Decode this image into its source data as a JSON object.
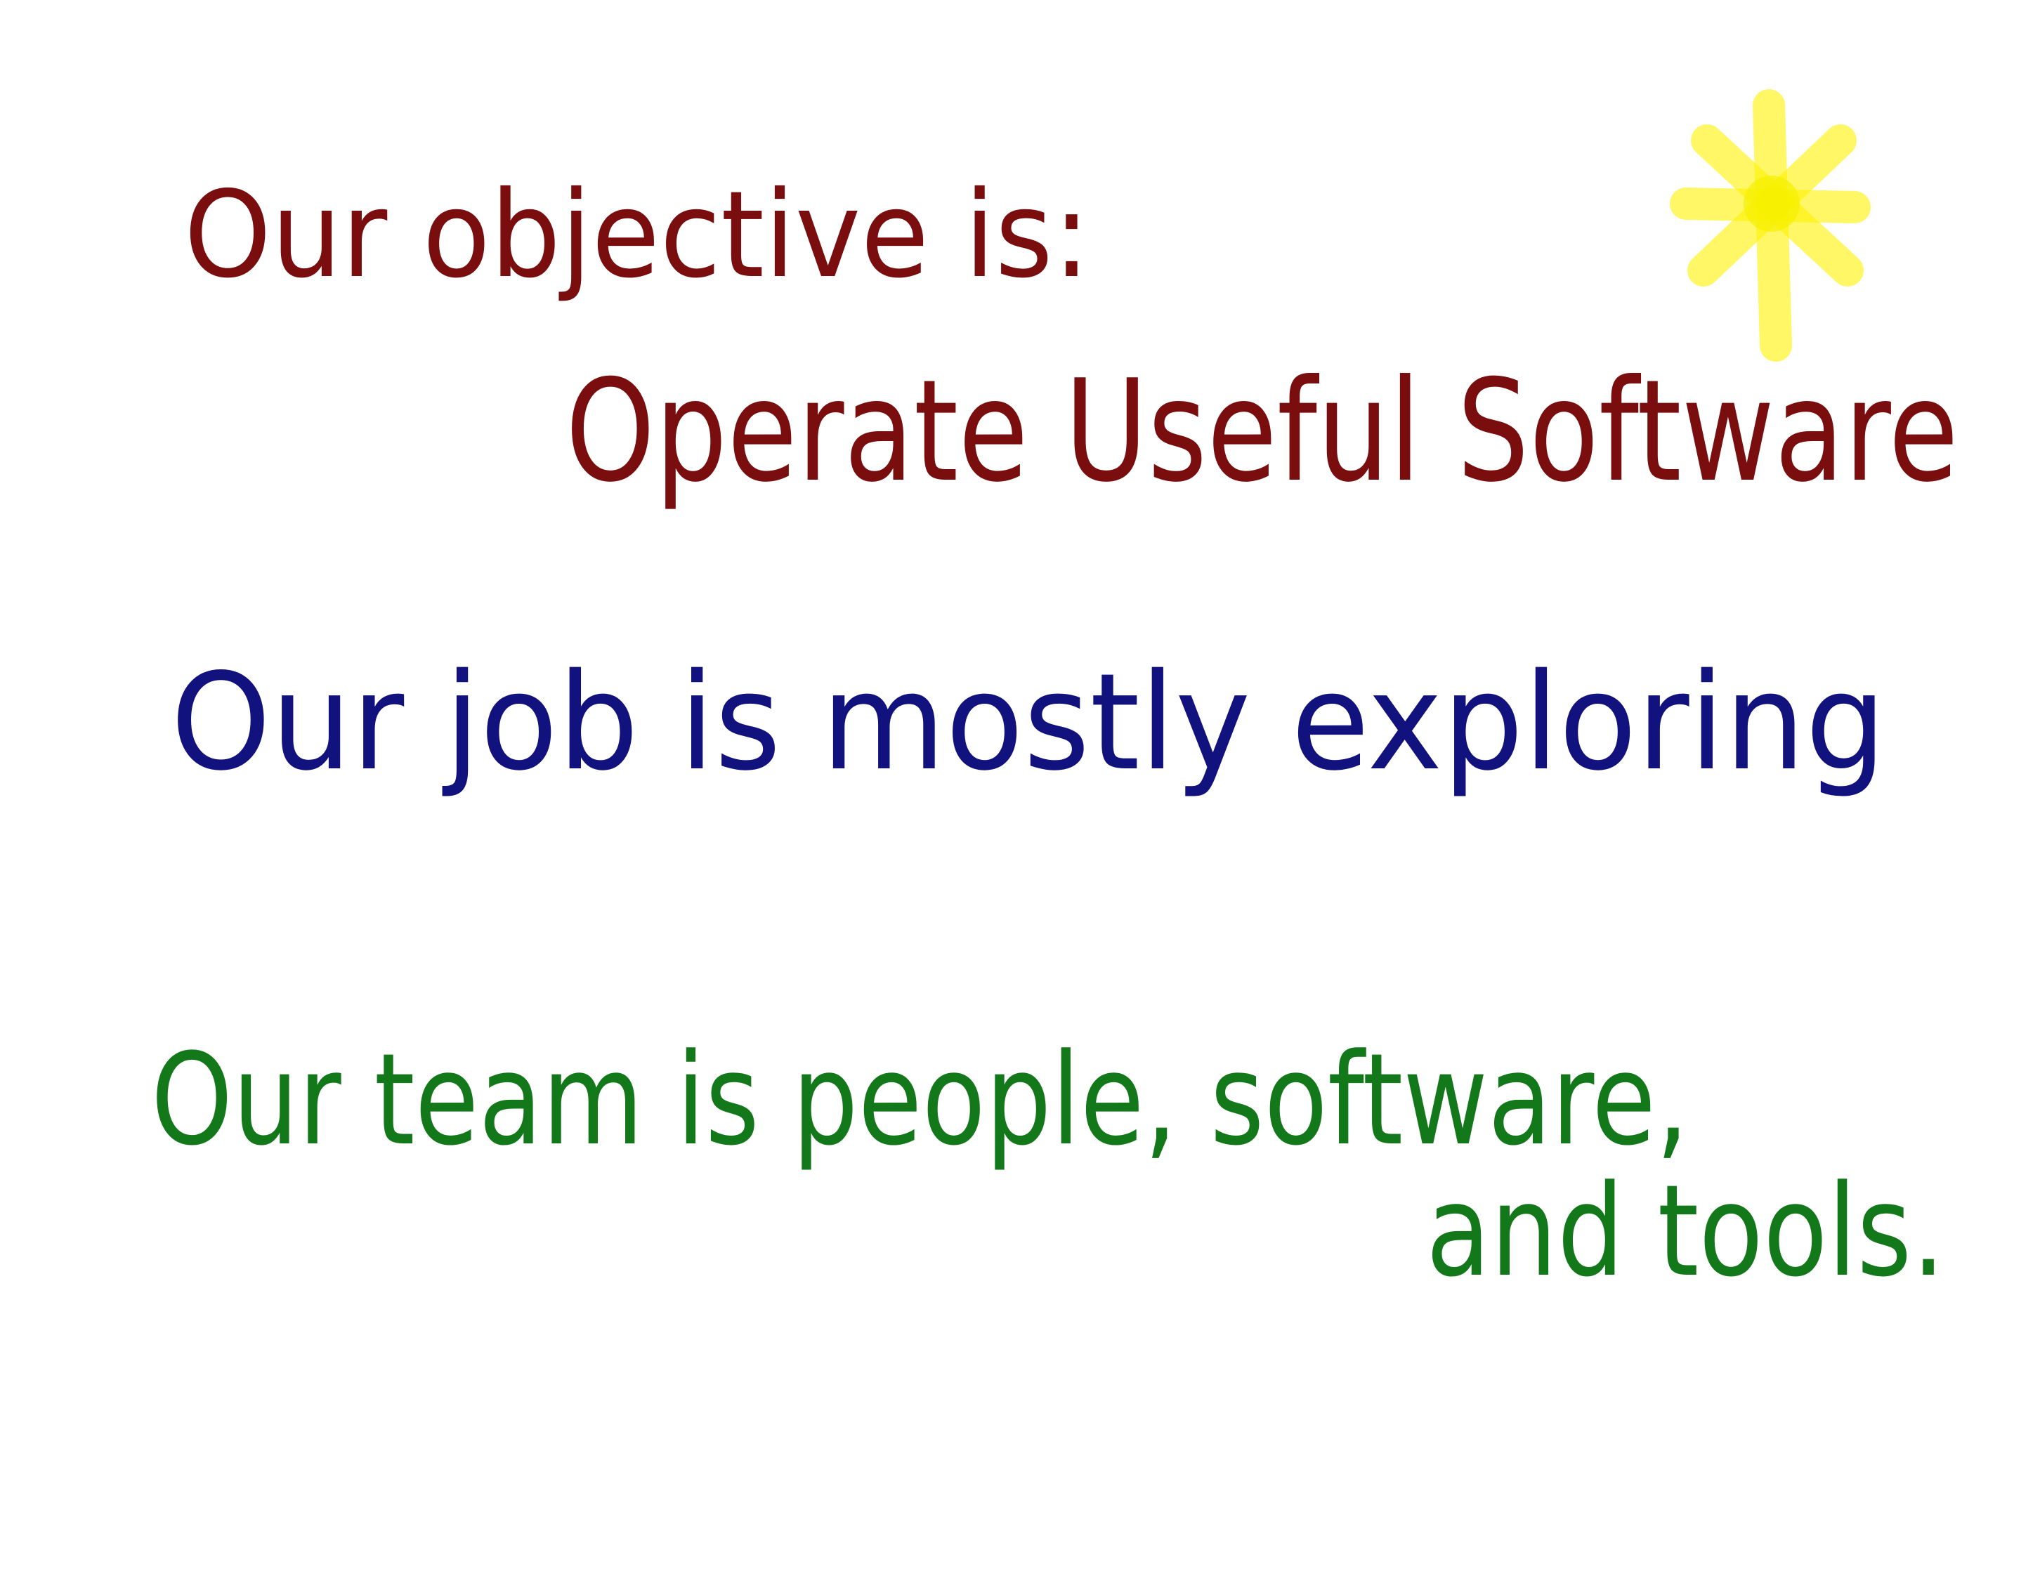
{
  "lines": [
    {
      "text": "Our objective is:"
    },
    {
      "text": "Operate Useful Software"
    },
    {
      "text": "Our job is mostly exploring"
    },
    {
      "text": "Our team is people, software,"
    },
    {
      "text": "and tools."
    }
  ]
}
